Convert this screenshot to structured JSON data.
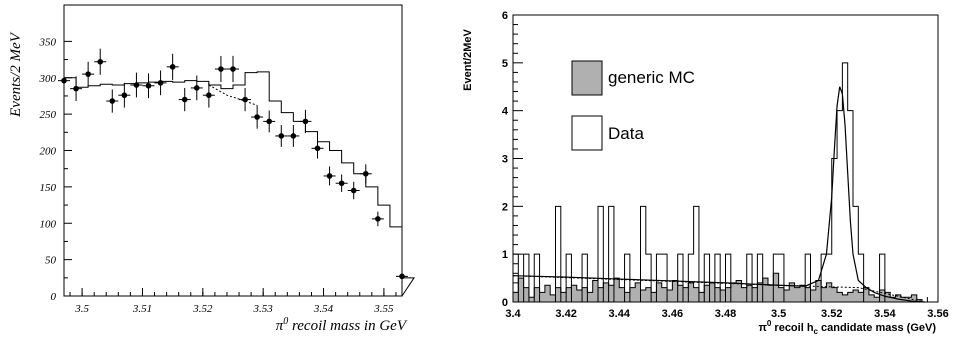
{
  "chart_data": [
    {
      "type": "histogram",
      "xlabel_main": "π",
      "xlabel_sup": "0",
      "xlabel_rest": " recoil mass in GeV",
      "ylabel": "Events/2 MeV",
      "xlim": [
        3.497,
        3.553
      ],
      "ylim": [
        0,
        400
      ],
      "x_ticks": [
        "3.5",
        "3.51",
        "3.52",
        "3.53",
        "3.54",
        "3.55"
      ],
      "x_tick_values": [
        3.5,
        3.51,
        3.52,
        3.53,
        3.54,
        3.55
      ],
      "y_ticks": [
        "0",
        "50",
        "100",
        "150",
        "200",
        "250",
        "300",
        "350"
      ],
      "y_tick_values": [
        0,
        50,
        100,
        150,
        200,
        250,
        300,
        350
      ],
      "bin_width": 0.002,
      "bin_start": 3.497,
      "histogram_values": [
        300,
        287,
        289,
        291,
        290,
        292,
        293,
        294,
        295,
        294,
        296,
        295,
        290,
        285,
        290,
        307,
        308,
        268,
        252,
        240,
        226,
        212,
        200,
        183,
        168,
        150,
        125,
        95,
        25
      ],
      "background_dashed": {
        "x": [
          3.521,
          3.524,
          3.527,
          3.529
        ],
        "y": [
          290,
          276,
          268,
          262
        ]
      },
      "points": {
        "x": [
          3.497,
          3.499,
          3.501,
          3.503,
          3.505,
          3.507,
          3.509,
          3.511,
          3.513,
          3.515,
          3.517,
          3.519,
          3.521,
          3.523,
          3.525,
          3.527,
          3.529,
          3.531,
          3.533,
          3.535,
          3.537,
          3.539,
          3.541,
          3.543,
          3.545,
          3.547,
          3.549,
          3.551,
          3.553
        ],
        "y": [
          296,
          285,
          305,
          322,
          268,
          276,
          290,
          289,
          293,
          315,
          270,
          286,
          276,
          312,
          312,
          270,
          246,
          240,
          220,
          220,
          240,
          203,
          165,
          155,
          145,
          168,
          106,
          0,
          27
        ],
        "err": [
          17,
          17,
          17,
          18,
          16,
          17,
          17,
          17,
          17,
          18,
          16,
          17,
          17,
          18,
          18,
          16,
          16,
          15,
          15,
          15,
          16,
          14,
          13,
          12,
          12,
          13,
          10,
          0,
          5
        ]
      }
    },
    {
      "type": "histogram",
      "xlabel": "π⁰ recoil h꜀ candidate mass (GeV)",
      "xlabel_main": "π",
      "xlabel_sup": "0",
      "xlabel_mid": " recoil h",
      "xlabel_sub": "c",
      "xlabel_rest": " candidate mass (GeV)",
      "ylabel": "Event/2MeV",
      "xlim": [
        3.4,
        3.56
      ],
      "ylim": [
        0,
        6
      ],
      "x_ticks": [
        "3.4",
        "3.42",
        "3.44",
        "3.46",
        "3.48",
        "3.5",
        "3.52",
        "3.54",
        "3.56"
      ],
      "x_tick_values": [
        3.4,
        3.42,
        3.44,
        3.46,
        3.48,
        3.5,
        3.52,
        3.54,
        3.56
      ],
      "y_ticks": [
        "0",
        "1",
        "2",
        "3",
        "4",
        "5",
        "6"
      ],
      "y_tick_values": [
        0,
        1,
        2,
        3,
        4,
        5,
        6
      ],
      "bin_width": 0.002,
      "bin_start": 3.4,
      "legend": [
        {
          "label": "generic MC",
          "fill": "#b0b0b0"
        },
        {
          "label": "Data",
          "fill": "#ffffff"
        }
      ],
      "legend_position": "top-left",
      "series": [
        {
          "name": "generic MC",
          "fill": "#b0b0b0",
          "values": [
            0.2,
            0.5,
            0.3,
            0.1,
            0.3,
            0.2,
            0.35,
            0.15,
            0.3,
            0.2,
            0.3,
            0.35,
            0.25,
            0.3,
            0.2,
            0.45,
            0.3,
            0.4,
            0.35,
            0.5,
            0.3,
            0.2,
            0.3,
            0.4,
            0.25,
            0.3,
            0.2,
            0.4,
            0.3,
            0.25,
            0.45,
            0.35,
            0.3,
            0.4,
            0.3,
            0.2,
            0.35,
            0.4,
            0.3,
            0.25,
            0.3,
            0.4,
            0.45,
            0.3,
            0.35,
            0.3,
            0.4,
            0.5,
            0.35,
            0.6,
            0.3,
            0.25,
            0.4,
            0.3,
            0.35,
            0.3,
            0.25,
            0.45,
            0.3,
            0.4,
            0.3,
            0.2,
            0.15,
            0.2,
            0.25,
            0.2,
            0.3,
            0.15,
            0.1,
            0.25,
            0.2,
            0.1,
            0.15,
            0.1,
            0.1,
            0.15,
            0.05,
            0,
            0,
            0
          ]
        },
        {
          "name": "Data",
          "fill": "#ffffff",
          "values": [
            1,
            0,
            1,
            0,
            1,
            0,
            0,
            0,
            2,
            0,
            1,
            0,
            0,
            1,
            0,
            0,
            2,
            0,
            2,
            0,
            0,
            1,
            0,
            0,
            2,
            1,
            0,
            1,
            1,
            0,
            0,
            1,
            0,
            1,
            2,
            0,
            1,
            0,
            1,
            0,
            1,
            0,
            0,
            0,
            1,
            0,
            1,
            0,
            0,
            1,
            1,
            0,
            0,
            0,
            0,
            1,
            0,
            0,
            1,
            1,
            3,
            4,
            5,
            4,
            2,
            1,
            0,
            0,
            0,
            1,
            0,
            0,
            0,
            0,
            0,
            0,
            0,
            0,
            0,
            0
          ]
        }
      ],
      "fit_curve": {
        "x": [
          3.4,
          3.42,
          3.44,
          3.46,
          3.48,
          3.5,
          3.51,
          3.515,
          3.518,
          3.52,
          3.521,
          3.522,
          3.523,
          3.524,
          3.525,
          3.526,
          3.527,
          3.528,
          3.53,
          3.533,
          3.536,
          3.54,
          3.545,
          3.55,
          3.555
        ],
        "y": [
          0.55,
          0.52,
          0.48,
          0.44,
          0.4,
          0.35,
          0.33,
          0.45,
          1.0,
          2.2,
          3.2,
          4.1,
          4.5,
          4.35,
          3.7,
          2.7,
          1.7,
          1.0,
          0.45,
          0.3,
          0.2,
          0.12,
          0.06,
          0.02,
          0.0
        ]
      },
      "background_dashed": {
        "x": [
          3.4,
          3.45,
          3.5,
          3.53,
          3.545,
          3.555
        ],
        "y": [
          0.55,
          0.45,
          0.35,
          0.3,
          0.12,
          0.0
        ]
      }
    }
  ]
}
